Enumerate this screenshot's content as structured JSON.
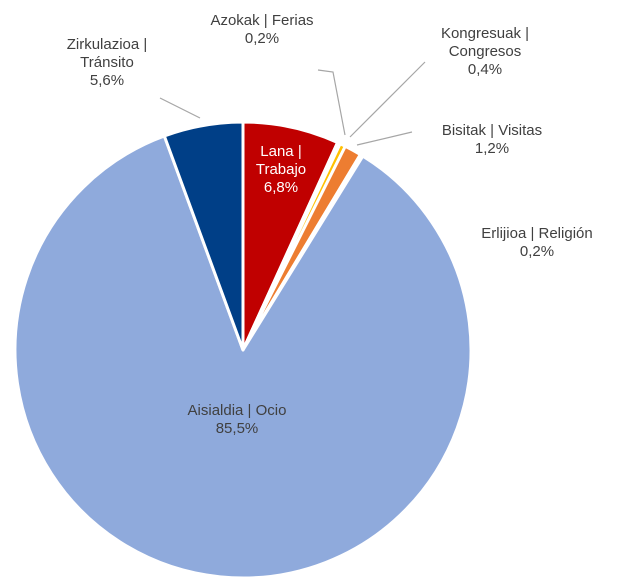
{
  "chart_data": {
    "type": "pie",
    "categories": [
      "Lana | Trabajo",
      "Azokak | Ferias",
      "Kongresuak | Congresos",
      "Bisitak | Visitas",
      "Erlijioa | Religión",
      "Aisialdia | Ocio",
      "Zirkulazioa | Tránsito"
    ],
    "values": [
      6.8,
      0.2,
      0.4,
      1.2,
      0.2,
      85.5,
      5.6
    ],
    "value_labels": [
      "6,8%",
      "0,2%",
      "0,4%",
      "1,2%",
      "0,2%",
      "85,5%",
      "5,6%"
    ],
    "colors": [
      "#c00000",
      "#a5a5a5",
      "#ffc000",
      "#ed7d31",
      "#d9d9d9",
      "#8faadc",
      "#003f87"
    ]
  }
}
